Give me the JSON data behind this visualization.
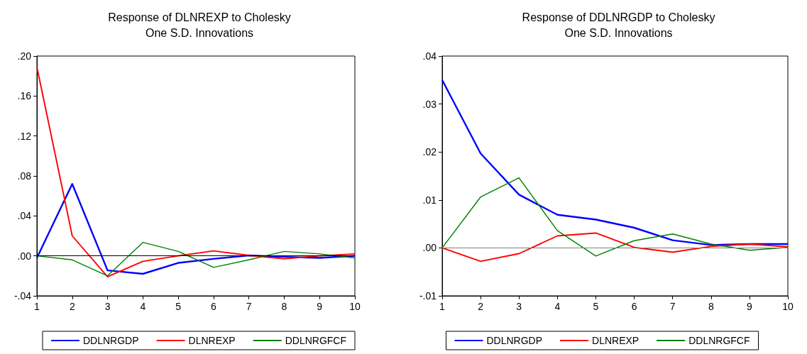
{
  "chart_data": [
    {
      "type": "line",
      "title": "Response of DLNREXP to Cholesky\nOne S.D. Innovations",
      "x": [
        1,
        2,
        3,
        4,
        5,
        6,
        7,
        8,
        9,
        10
      ],
      "xlim": [
        1,
        10
      ],
      "xticks": [
        1,
        2,
        3,
        4,
        5,
        6,
        7,
        8,
        9,
        10
      ],
      "ylim": [
        -0.04,
        0.2
      ],
      "yticks": [
        {
          "value": -0.04,
          "label": "-.04"
        },
        {
          "value": 0,
          "label": ".00"
        },
        {
          "value": 0.04,
          "label": ".04"
        },
        {
          "value": 0.08,
          "label": ".08"
        },
        {
          "value": 0.12,
          "label": ".12"
        },
        {
          "value": 0.16,
          "label": ".16"
        },
        {
          "value": 0.2,
          "label": ".20"
        }
      ],
      "grid": false,
      "legend": "bottom",
      "marker": "none",
      "line_style": "solid",
      "ref_lines": [
        {
          "axis": "y",
          "value": 0,
          "color": "#000000"
        }
      ],
      "series": [
        {
          "name": "DDLNRGDP",
          "color": "#0000ff",
          "values": [
            -0.002,
            0.072,
            -0.0145,
            -0.018,
            -0.007,
            -0.003,
            0.0005,
            -0.001,
            -0.002,
            0
          ]
        },
        {
          "name": "DLNREXP",
          "color": "#ff0000",
          "values": [
            0.189,
            0.02,
            -0.021,
            -0.0055,
            0,
            0.005,
            0.0005,
            -0.003,
            0,
            0.002
          ]
        },
        {
          "name": "DDLNRGFCF",
          "color": "#008000",
          "values": [
            0,
            -0.004,
            -0.02,
            0.0135,
            0.0045,
            -0.0115,
            -0.004,
            0.0045,
            0.002,
            -0.002
          ]
        }
      ]
    },
    {
      "type": "line",
      "title": "Response of DDLNRGDP to Cholesky\nOne S.D. Innovations",
      "x": [
        1,
        2,
        3,
        4,
        5,
        6,
        7,
        8,
        9,
        10
      ],
      "xlim": [
        1,
        10
      ],
      "xticks": [
        1,
        2,
        3,
        4,
        5,
        6,
        7,
        8,
        9,
        10
      ],
      "ylim": [
        -0.01,
        0.04
      ],
      "yticks": [
        {
          "value": -0.01,
          "label": "-.01"
        },
        {
          "value": 0,
          "label": ".00"
        },
        {
          "value": 0.01,
          "label": ".01"
        },
        {
          "value": 0.02,
          "label": ".02"
        },
        {
          "value": 0.03,
          "label": ".03"
        },
        {
          "value": 0.04,
          "label": ".04"
        }
      ],
      "grid": false,
      "legend": "bottom",
      "marker": "none",
      "line_style": "solid",
      "ref_lines": [
        {
          "axis": "y",
          "value": 0,
          "color": "#808080"
        }
      ],
      "series": [
        {
          "name": "DDLNRGDP",
          "color": "#0000ff",
          "values": [
            0.035,
            0.0197,
            0.0111,
            0.0069,
            0.0059,
            0.0042,
            0.0016,
            0.0006,
            0.0008,
            0.0008
          ]
        },
        {
          "name": "DLNREXP",
          "color": "#ff0000",
          "values": [
            0,
            -0.0028,
            -0.0012,
            0.0025,
            0.0031,
            0.0001,
            -0.0009,
            0.0003,
            0.0008,
            0.0002
          ]
        },
        {
          "name": "DDLNRGFCF",
          "color": "#008000",
          "values": [
            0,
            0.0106,
            0.0146,
            0.0036,
            -0.0017,
            0.0015,
            0.0029,
            0.0008,
            -0.0005,
            0.0001
          ]
        }
      ]
    }
  ]
}
